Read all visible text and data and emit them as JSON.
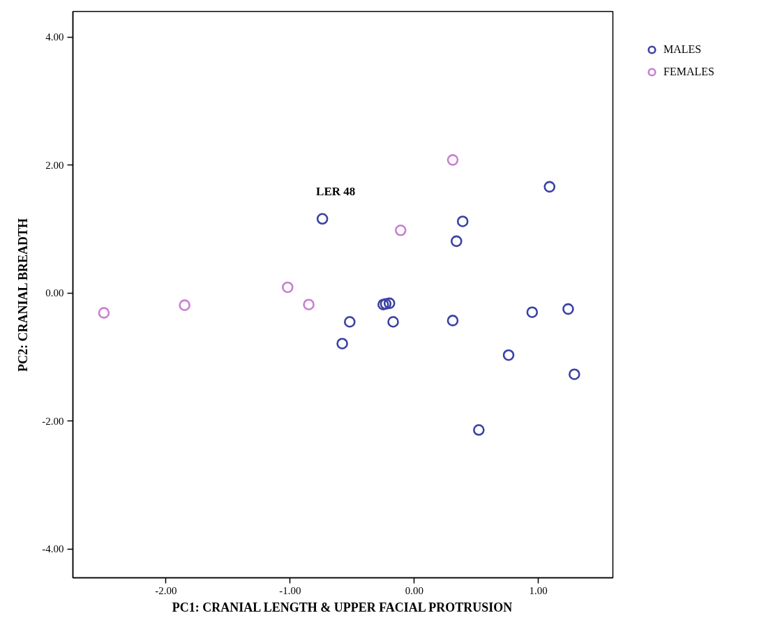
{
  "chart_data": {
    "type": "scatter",
    "xlabel": "PC1: CRANIAL LENGTH & UPPER FACIAL PROTRUSION",
    "ylabel": "PC2: CRANIAL BREADTH",
    "xlim": [
      -2.75,
      1.6
    ],
    "ylim": [
      -4.45,
      4.4
    ],
    "xticks": [
      {
        "value": -2,
        "label": "-2.00"
      },
      {
        "value": -1,
        "label": "-1.00"
      },
      {
        "value": 0,
        "label": "0.00"
      },
      {
        "value": 1,
        "label": "1.00"
      }
    ],
    "yticks": [
      {
        "value": -4,
        "label": "-4.00"
      },
      {
        "value": -2,
        "label": "-2.00"
      },
      {
        "value": 0,
        "label": "0.00"
      },
      {
        "value": 2,
        "label": "2.00"
      },
      {
        "value": 4,
        "label": "4.00"
      }
    ],
    "grid": false,
    "legend": "top right",
    "marker": "circle",
    "annotations": [
      {
        "text": "LER 48",
        "x": -0.74,
        "y": 1.16
      }
    ],
    "series": [
      {
        "name": "MALES",
        "color": "#3b41a3",
        "x": [
          -0.74,
          1.09,
          0.39,
          0.34,
          -0.25,
          -0.23,
          -0.2,
          -0.52,
          -0.17,
          0.31,
          0.95,
          1.24,
          -0.58,
          0.76,
          1.29,
          0.52
        ],
        "values": [
          1.16,
          1.66,
          1.12,
          0.81,
          -0.18,
          -0.17,
          -0.16,
          -0.45,
          -0.45,
          -0.43,
          -0.3,
          -0.25,
          -0.79,
          -0.97,
          -1.27,
          -2.14
        ]
      },
      {
        "name": "FEMALES",
        "color": "#c97fd3",
        "x": [
          -2.5,
          -1.85,
          -1.02,
          -0.85,
          -0.11,
          0.31
        ],
        "values": [
          -0.31,
          -0.19,
          0.09,
          -0.18,
          0.98,
          2.08
        ]
      }
    ]
  }
}
